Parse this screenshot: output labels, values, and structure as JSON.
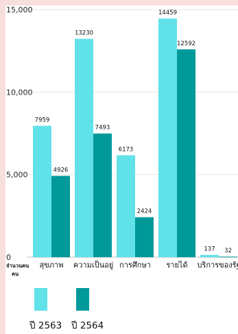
{
  "chart_data": {
    "type": "bar",
    "categories": [
      "สุขภาพ",
      "ความเป็นอยู่",
      "การศึกษา",
      "รายได้",
      "บริการของรัฐ"
    ],
    "series": [
      {
        "name": "ปี 2563",
        "color": "#61e1e8",
        "values": [
          7959,
          13230,
          6173,
          14459,
          137
        ]
      },
      {
        "name": "ปี 2564",
        "color": "#00999a",
        "values": [
          4926,
          7493,
          2424,
          12592,
          32
        ]
      }
    ],
    "y_ticks": [
      "0",
      "5,000",
      "10,000",
      "15,000"
    ],
    "ylim": [
      0,
      15000
    ],
    "ylabel": "จำนวนคน\nคน",
    "grid": true,
    "legend_position": "bottom-left"
  }
}
